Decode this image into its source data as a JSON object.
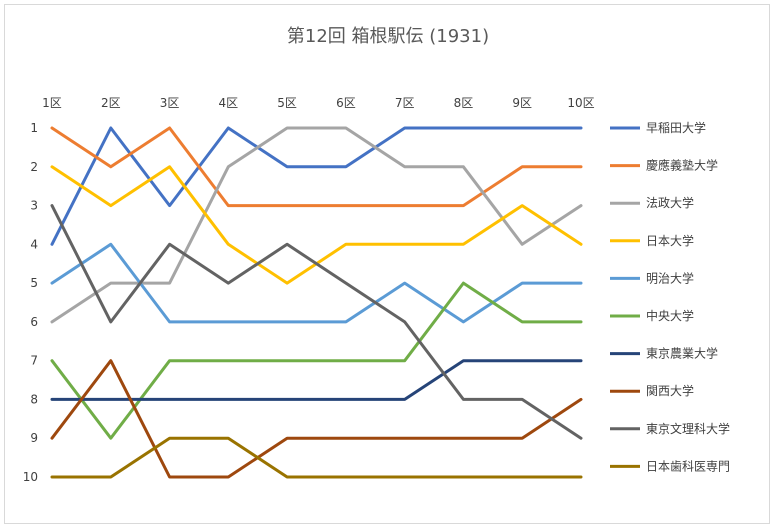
{
  "chart_data": {
    "type": "line",
    "title": "第12回 箱根駅伝 (1931)",
    "xlabel": "",
    "ylabel": "",
    "categories": [
      "1区",
      "2区",
      "3区",
      "4区",
      "5区",
      "6区",
      "7区",
      "8区",
      "9区",
      "10区"
    ],
    "x_axis_position": "top",
    "y_axis_reversed": true,
    "ylim": [
      1,
      10
    ],
    "yticks": [
      "1",
      "2",
      "3",
      "4",
      "5",
      "6",
      "7",
      "8",
      "9",
      "10"
    ],
    "grid": false,
    "legend_position": "right",
    "series": [
      {
        "name": "早稲田大学",
        "color": "#4472c4",
        "values": [
          4,
          1,
          3,
          1,
          2,
          2,
          1,
          1,
          1,
          1
        ]
      },
      {
        "name": "慶應義塾大学",
        "color": "#ed7d31",
        "values": [
          1,
          2,
          1,
          3,
          3,
          3,
          3,
          3,
          2,
          2
        ]
      },
      {
        "name": "法政大学",
        "color": "#a5a5a5",
        "values": [
          6,
          5,
          5,
          2,
          1,
          1,
          2,
          2,
          4,
          3
        ]
      },
      {
        "name": "日本大学",
        "color": "#ffc000",
        "values": [
          2,
          3,
          2,
          4,
          5,
          4,
          4,
          4,
          3,
          4
        ]
      },
      {
        "name": "明治大学",
        "color": "#5b9bd5",
        "values": [
          5,
          4,
          6,
          6,
          6,
          6,
          5,
          6,
          5,
          5
        ]
      },
      {
        "name": "中央大学",
        "color": "#70ad47",
        "values": [
          7,
          9,
          7,
          7,
          7,
          7,
          7,
          5,
          6,
          6
        ]
      },
      {
        "name": "東京農業大学",
        "color": "#264478",
        "values": [
          8,
          8,
          8,
          8,
          8,
          8,
          8,
          7,
          7,
          7
        ]
      },
      {
        "name": "関西大学",
        "color": "#9e480e",
        "values": [
          9,
          7,
          10,
          10,
          9,
          9,
          9,
          9,
          9,
          8
        ]
      },
      {
        "name": "東京文理科大学",
        "color": "#636363",
        "values": [
          3,
          6,
          4,
          5,
          4,
          5,
          6,
          8,
          8,
          9
        ]
      },
      {
        "name": "日本歯科医専門",
        "color": "#997300",
        "values": [
          10,
          10,
          9,
          9,
          10,
          10,
          10,
          10,
          10,
          10
        ]
      }
    ]
  }
}
